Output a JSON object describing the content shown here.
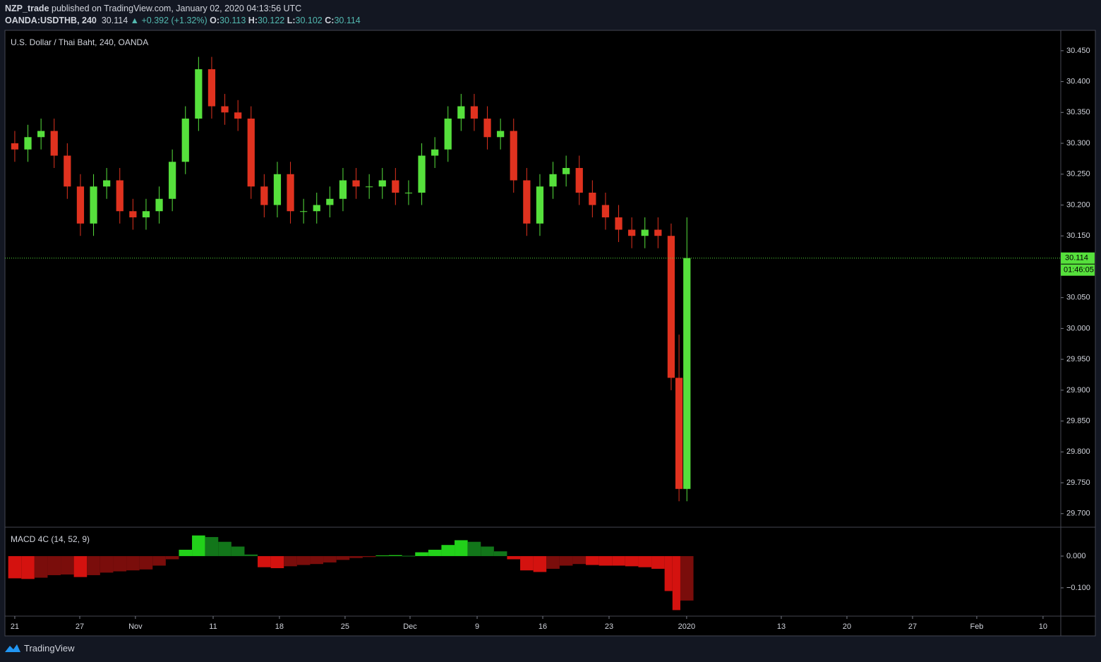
{
  "header": {
    "author": "NZP_trade",
    "published": "published on TradingView.com, January 02, 2020 04:13:56 UTC",
    "symbol": "OANDA:USDTHB, 240",
    "price": "30.114",
    "arrow": "▲",
    "change": "+0.392 (+1.32%)",
    "o_label": "O:",
    "o": "30.113",
    "h_label": "H:",
    "h": "30.122",
    "l_label": "L:",
    "l": "30.102",
    "c_label": "C:",
    "c": "30.114"
  },
  "footer": {
    "brand": "TradingView"
  },
  "chart_data": [
    {
      "type": "candlestick",
      "title": "U.S. Dollar / Thai Baht, 240, OANDA",
      "x": [
        0,
        1,
        2,
        3,
        4,
        5,
        6,
        7,
        8,
        9,
        10,
        11,
        12,
        13,
        14,
        15,
        16,
        17,
        18,
        19,
        20,
        21,
        22,
        23,
        24,
        25,
        26,
        27,
        28,
        29,
        30,
        31,
        32,
        33,
        34,
        35,
        36,
        37,
        38,
        39,
        40,
        41,
        42,
        43,
        44,
        45,
        46,
        47,
        48,
        49,
        50,
        50.6,
        51.2
      ],
      "open": [
        30.3,
        30.29,
        30.31,
        30.32,
        30.28,
        30.23,
        30.17,
        30.23,
        30.24,
        30.19,
        30.18,
        30.19,
        30.21,
        30.27,
        30.34,
        30.42,
        30.36,
        30.35,
        30.34,
        30.23,
        30.2,
        30.25,
        30.19,
        30.19,
        30.2,
        30.21,
        30.24,
        30.23,
        30.23,
        30.24,
        30.22,
        30.22,
        30.28,
        30.29,
        30.34,
        30.36,
        30.34,
        30.31,
        30.32,
        30.24,
        30.17,
        30.23,
        30.25,
        30.26,
        30.22,
        30.2,
        30.18,
        30.16,
        30.15,
        30.16,
        30.15,
        29.92,
        29.74
      ],
      "high": [
        30.32,
        30.33,
        30.34,
        30.34,
        30.3,
        30.25,
        30.25,
        30.26,
        30.26,
        30.21,
        30.21,
        30.23,
        30.29,
        30.36,
        30.44,
        30.44,
        30.38,
        30.37,
        30.36,
        30.25,
        30.27,
        30.27,
        30.21,
        30.22,
        30.23,
        30.26,
        30.26,
        30.25,
        30.26,
        30.26,
        30.24,
        30.3,
        30.31,
        30.36,
        30.38,
        30.38,
        30.36,
        30.34,
        30.34,
        30.26,
        30.25,
        30.27,
        30.28,
        30.28,
        30.24,
        30.22,
        30.2,
        30.18,
        30.18,
        30.18,
        30.17,
        29.99,
        30.18
      ],
      "low": [
        30.27,
        30.27,
        30.29,
        30.26,
        30.21,
        30.15,
        30.15,
        30.21,
        30.17,
        30.16,
        30.16,
        30.17,
        30.19,
        30.25,
        30.32,
        30.34,
        30.33,
        30.32,
        30.21,
        30.18,
        30.18,
        30.17,
        30.17,
        30.17,
        30.18,
        30.19,
        30.21,
        30.21,
        30.21,
        30.2,
        30.2,
        30.2,
        30.26,
        30.27,
        30.32,
        30.32,
        30.29,
        30.29,
        30.22,
        30.15,
        30.15,
        30.21,
        30.23,
        30.2,
        30.18,
        30.16,
        30.14,
        30.13,
        30.13,
        30.13,
        29.9,
        29.72,
        29.72
      ],
      "close": [
        30.29,
        30.31,
        30.32,
        30.28,
        30.23,
        30.17,
        30.23,
        30.24,
        30.19,
        30.18,
        30.19,
        30.21,
        30.27,
        30.34,
        30.42,
        30.36,
        30.35,
        30.34,
        30.23,
        30.2,
        30.25,
        30.19,
        30.19,
        30.2,
        30.21,
        30.24,
        30.23,
        30.23,
        30.24,
        30.22,
        30.22,
        30.28,
        30.29,
        30.34,
        30.36,
        30.34,
        30.31,
        30.32,
        30.24,
        30.17,
        30.23,
        30.25,
        30.26,
        30.22,
        30.2,
        30.18,
        30.16,
        30.15,
        30.16,
        30.15,
        29.92,
        29.74,
        30.114
      ],
      "up_color": "#56e03c",
      "down_color": "#e0321f",
      "last_price": 30.114,
      "last_price_label": "30.114",
      "countdown": "01:46:05",
      "xlim": [
        -0.75,
        79.68
      ],
      "ylim": [
        29.678,
        30.483
      ],
      "yticks": [
        {
          "value": 30.45,
          "label": "30.450"
        },
        {
          "value": 30.4,
          "label": "30.400"
        },
        {
          "value": 30.35,
          "label": "30.350"
        },
        {
          "value": 30.3,
          "label": "30.300"
        },
        {
          "value": 30.25,
          "label": "30.250"
        },
        {
          "value": 30.2,
          "label": "30.200"
        },
        {
          "value": 30.15,
          "label": "30.150"
        },
        {
          "value": 30.05,
          "label": "30.050"
        },
        {
          "value": 30.0,
          "label": "30.000"
        },
        {
          "value": 29.95,
          "label": "29.950"
        },
        {
          "value": 29.9,
          "label": "29.900"
        },
        {
          "value": 29.85,
          "label": "29.850"
        },
        {
          "value": 29.8,
          "label": "29.800"
        },
        {
          "value": 29.75,
          "label": "29.750"
        },
        {
          "value": 29.7,
          "label": "29.700"
        }
      ]
    },
    {
      "type": "histogram",
      "title": "MACD 4C (14, 52, 9)",
      "x": [
        0,
        1,
        2,
        3,
        4,
        5,
        6,
        7,
        8,
        9,
        10,
        11,
        12,
        13,
        14,
        15,
        16,
        17,
        18,
        19,
        20,
        21,
        22,
        23,
        24,
        25,
        26,
        27,
        28,
        29,
        30,
        31,
        32,
        33,
        34,
        35,
        36,
        37,
        38,
        39,
        40,
        41,
        42,
        43,
        44,
        45,
        46,
        47,
        48,
        49,
        50,
        50.6,
        51.2
      ],
      "values": [
        -0.07,
        -0.072,
        -0.068,
        -0.06,
        -0.058,
        -0.066,
        -0.06,
        -0.052,
        -0.048,
        -0.045,
        -0.042,
        -0.03,
        -0.01,
        0.02,
        0.065,
        0.06,
        0.045,
        0.03,
        0.005,
        -0.035,
        -0.038,
        -0.032,
        -0.028,
        -0.025,
        -0.02,
        -0.012,
        -0.006,
        -0.003,
        0.002,
        0.003,
        0.001,
        0.012,
        0.02,
        0.035,
        0.05,
        0.045,
        0.03,
        0.015,
        -0.01,
        -0.045,
        -0.05,
        -0.04,
        -0.03,
        -0.025,
        -0.028,
        -0.03,
        -0.03,
        -0.032,
        -0.035,
        -0.04,
        -0.11,
        -0.17,
        -0.14
      ],
      "colors": {
        "pos_up": "#22d11a",
        "pos_down": "#12761a",
        "neg_down": "#d4120f",
        "neg_up": "#7a0d0b"
      },
      "xlim": [
        -0.75,
        79.68
      ],
      "ylim": [
        -0.189,
        0.091
      ],
      "yticks": [
        {
          "value": 0,
          "label": "0.000"
        },
        {
          "value": -0.1,
          "label": "−0.100"
        }
      ],
      "xticks": [
        {
          "value": 0,
          "label": "21"
        },
        {
          "value": 4.95,
          "label": "27"
        },
        {
          "value": 9.19,
          "label": "Nov"
        },
        {
          "value": 15.11,
          "label": "11"
        },
        {
          "value": 20.16,
          "label": "18"
        },
        {
          "value": 25.16,
          "label": "25"
        },
        {
          "value": 30.11,
          "label": "Dec"
        },
        {
          "value": 35.22,
          "label": "9"
        },
        {
          "value": 40.22,
          "label": "16"
        },
        {
          "value": 45.27,
          "label": "23"
        },
        {
          "value": 51.18,
          "label": "2020"
        },
        {
          "value": 58.39,
          "label": "13"
        },
        {
          "value": 63.39,
          "label": "20"
        },
        {
          "value": 68.39,
          "label": "27"
        },
        {
          "value": 73.28,
          "label": "Feb"
        },
        {
          "value": 78.33,
          "label": "10"
        }
      ]
    }
  ]
}
